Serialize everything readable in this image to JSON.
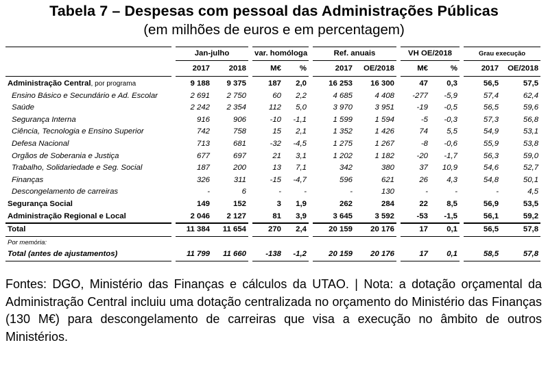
{
  "title": "Tabela 7 – Despesas com pessoal das Administrações Públicas",
  "subtitle": "(em milhões de euros e em percentagem)",
  "header": {
    "groups": [
      "Jan-julho",
      "var. homóloga",
      "Ref. anuais",
      "VH OE/2018",
      "Grau execução"
    ],
    "columns": [
      "2017",
      "2018",
      "M€",
      "%",
      "2017",
      "OE/2018",
      "M€",
      "%",
      "2017",
      "OE/2018"
    ]
  },
  "rows": [
    {
      "label": "Administração Central",
      "suffix": ", por programa",
      "values": [
        "9 188",
        "9 375",
        "187",
        "2,0",
        "16 253",
        "16 300",
        "47",
        "0,3",
        "56,5",
        "57,5"
      ]
    },
    {
      "label": "Ensino Básico e Secundário e Ad. Escolar",
      "values": [
        "2 691",
        "2 750",
        "60",
        "2,2",
        "4 685",
        "4 408",
        "-277",
        "-5,9",
        "57,4",
        "62,4"
      ]
    },
    {
      "label": "Saúde",
      "values": [
        "2 242",
        "2 354",
        "112",
        "5,0",
        "3 970",
        "3 951",
        "-19",
        "-0,5",
        "56,5",
        "59,6"
      ]
    },
    {
      "label": "Segurança Interna",
      "values": [
        "916",
        "906",
        "-10",
        "-1,1",
        "1 599",
        "1 594",
        "-5",
        "-0,3",
        "57,3",
        "56,8"
      ]
    },
    {
      "label": "Ciência, Tecnologia e Ensino Superior",
      "values": [
        "742",
        "758",
        "15",
        "2,1",
        "1 352",
        "1 426",
        "74",
        "5,5",
        "54,9",
        "53,1"
      ]
    },
    {
      "label": "Defesa Nacional",
      "values": [
        "713",
        "681",
        "-32",
        "-4,5",
        "1 275",
        "1 267",
        "-8",
        "-0,6",
        "55,9",
        "53,8"
      ]
    },
    {
      "label": "Orgãos de Soberania e Justiça",
      "values": [
        "677",
        "697",
        "21",
        "3,1",
        "1 202",
        "1 182",
        "-20",
        "-1,7",
        "56,3",
        "59,0"
      ]
    },
    {
      "label": "Trabalho, Solidariedade e Seg. Social",
      "values": [
        "187",
        "200",
        "13",
        "7,1",
        "342",
        "380",
        "37",
        "10,9",
        "54,6",
        "52,7"
      ]
    },
    {
      "label": "Finanças",
      "values": [
        "326",
        "311",
        "-15",
        "-4,7",
        "596",
        "621",
        "26",
        "4,3",
        "54,8",
        "50,1"
      ]
    },
    {
      "label": "Descongelamento de carreiras",
      "values": [
        "-",
        "6",
        "-",
        "-",
        "-",
        "130",
        "-",
        "-",
        "-",
        "4,5"
      ]
    },
    {
      "label": "Segurança Social",
      "values": [
        "149",
        "152",
        "3",
        "1,9",
        "262",
        "284",
        "22",
        "8,5",
        "56,9",
        "53,5"
      ]
    },
    {
      "label": "Administração Regional e Local",
      "values": [
        "2 046",
        "2 127",
        "81",
        "3,9",
        "3 645",
        "3 592",
        "-53",
        "-1,5",
        "56,1",
        "59,2"
      ]
    }
  ],
  "total": {
    "label": "Total",
    "values": [
      "11 384",
      "11 654",
      "270",
      "2,4",
      "20 159",
      "20 176",
      "17",
      "0,1",
      "56,5",
      "57,8"
    ]
  },
  "memo_label": "Por memória:",
  "total_adj": {
    "label": "Total (antes de ajustamentos)",
    "values": [
      "11 799",
      "11 660",
      "-138",
      "-1,2",
      "20 159",
      "20 176",
      "17",
      "0,1",
      "58,5",
      "57,8"
    ]
  },
  "notes": "Fontes: DGO, Ministério das Finanças e cálculos da UTAO. | Nota: a dotação orçamental da Administração Central incluiu uma dotação centralizada no orçamento do Ministério das Finanças (130 M€) para descongelamento de carreiras que visa a execução no âmbito de outros Ministérios."
}
